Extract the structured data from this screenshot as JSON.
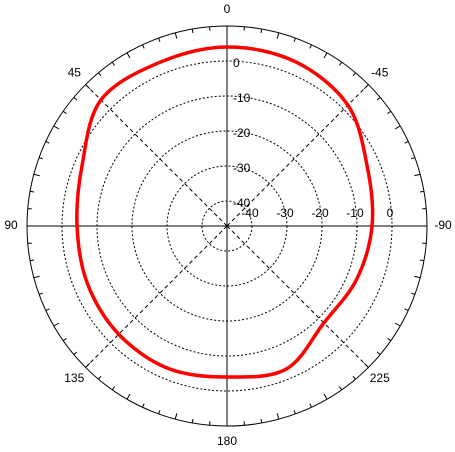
{
  "chart_data": {
    "type": "polar",
    "direction": "counterclockwise",
    "zero_location": "top",
    "theta": [
      0,
      22.5,
      45,
      67.5,
      90,
      112.5,
      135,
      157.5,
      180,
      202.5,
      225,
      247.5,
      270,
      292.5,
      315,
      337.5
    ],
    "series": [
      {
        "color": "#ff0000",
        "values": [
          4.0,
          3.4,
          3.8,
          -2.3,
          -4.3,
          -4.0,
          -3.4,
          -3.1,
          -4.0,
          -2.9,
          -8.0,
          -7.1,
          -5.7,
          -3.7,
          1.7,
          3.7
        ]
      }
    ],
    "rlim": [
      -47.14,
      10
    ],
    "rticks": [
      -40,
      -30,
      -20,
      -10,
      0
    ],
    "thetaticks": [
      0,
      45,
      90,
      135,
      180,
      225,
      {
        "value": 270,
        "label": "-90"
      },
      {
        "value": 315,
        "label": "-45"
      }
    ],
    "grid": true
  }
}
